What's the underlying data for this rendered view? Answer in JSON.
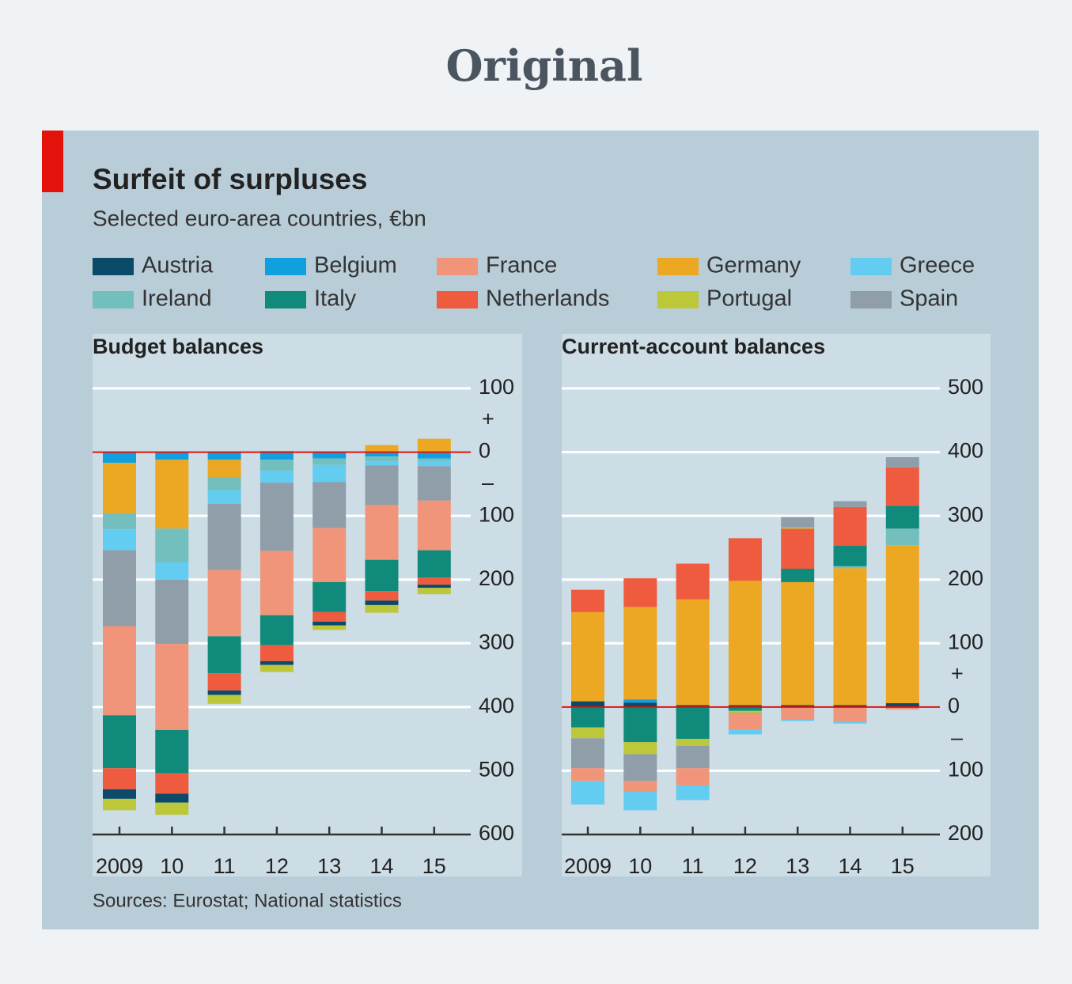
{
  "page_title": "Original",
  "title": "Surfeit of surpluses",
  "subtitle": "Selected euro-area countries, €bn",
  "source": "Sources: Eurostat; National statistics",
  "chart_data": [
    {
      "type": "bar",
      "stacked": true,
      "title": "Budget balances",
      "categories": [
        "2009",
        "10",
        "11",
        "12",
        "13",
        "14",
        "15"
      ],
      "ylim": [
        -600,
        100
      ],
      "yticks": [
        100,
        0,
        {
          "value": -100,
          "label": "100"
        },
        {
          "value": -200,
          "label": "200"
        },
        {
          "value": -300,
          "label": "300"
        },
        {
          "value": -400,
          "label": "400"
        },
        {
          "value": -500,
          "label": "500"
        },
        {
          "value": -600,
          "label": "600"
        }
      ],
      "sign_labels": [
        "+",
        "–"
      ],
      "grid": true,
      "series": [
        {
          "name": "Austria",
          "color": "#0b4a68",
          "values": [
            -15,
            -14,
            -7,
            -6,
            -6,
            -7,
            -5
          ]
        },
        {
          "name": "Belgium",
          "color": "#10a0df",
          "values": [
            -17,
            -12,
            -12,
            -12,
            -10,
            -7,
            -10
          ]
        },
        {
          "name": "France",
          "color": "#f0957a",
          "values": [
            -140,
            -135,
            -104,
            -101,
            -85,
            -86,
            -78
          ]
        },
        {
          "name": "Germany",
          "color": "#eca723",
          "values": [
            -79,
            -108,
            -27,
            2,
            1,
            11,
            21
          ]
        },
        {
          "name": "Greece",
          "color": "#62cdf0",
          "values": [
            -33,
            -27,
            -21,
            -19,
            -27,
            -7,
            -8
          ]
        },
        {
          "name": "Ireland",
          "color": "#73bfbe",
          "values": [
            -25,
            -53,
            -21,
            -17,
            -10,
            -7,
            -4
          ]
        },
        {
          "name": "Italy",
          "color": "#108a7a",
          "values": [
            -83,
            -68,
            -58,
            -47,
            -47,
            -49,
            -43
          ]
        },
        {
          "name": "Netherlands",
          "color": "#ee5b3f",
          "values": [
            -33,
            -32,
            -27,
            -25,
            -15,
            -15,
            -11
          ]
        },
        {
          "name": "Portugal",
          "color": "#bcc73a",
          "values": [
            -18,
            -19,
            -14,
            -11,
            -7,
            -12,
            -10
          ]
        },
        {
          "name": "Spain",
          "color": "#8f9ea9",
          "values": [
            -119,
            -101,
            -104,
            -107,
            -72,
            -62,
            -54
          ]
        }
      ]
    },
    {
      "type": "bar",
      "stacked": true,
      "title": "Current-account balances",
      "categories": [
        "2009",
        "10",
        "11",
        "12",
        "13",
        "14",
        "15"
      ],
      "ylim": [
        -200,
        500
      ],
      "yticks": [
        500,
        400,
        300,
        200,
        100,
        0,
        {
          "value": -100,
          "label": "100"
        },
        {
          "value": -200,
          "label": "200"
        }
      ],
      "sign_labels": [
        "+",
        "–"
      ],
      "grid": true,
      "series": [
        {
          "values": [
            9,
            7,
            3,
            3,
            3,
            3,
            6
          ]
        },
        {
          "values": [
            0,
            5,
            0,
            0,
            0,
            0,
            0
          ]
        },
        {
          "values": [
            -20,
            -17,
            -27,
            -25,
            -20,
            -23,
            -4
          ]
        },
        {
          "values": [
            140,
            145,
            166,
            195,
            193,
            215,
            248
          ]
        },
        {
          "values": [
            -37,
            -29,
            -23,
            -8,
            -2,
            -3,
            0
          ]
        },
        {
          "values": [
            0,
            0,
            0,
            0,
            0,
            3,
            26
          ]
        },
        {
          "values": [
            -32,
            -55,
            -50,
            -6,
            21,
            32,
            36
          ]
        },
        {
          "values": [
            35,
            45,
            56,
            67,
            63,
            61,
            60
          ]
        },
        {
          "values": [
            -17,
            -19,
            -11,
            -3,
            2,
            0,
            0
          ]
        },
        {
          "values": [
            -47,
            -42,
            -35,
            -1,
            16,
            9,
            16
          ]
        }
      ]
    }
  ]
}
